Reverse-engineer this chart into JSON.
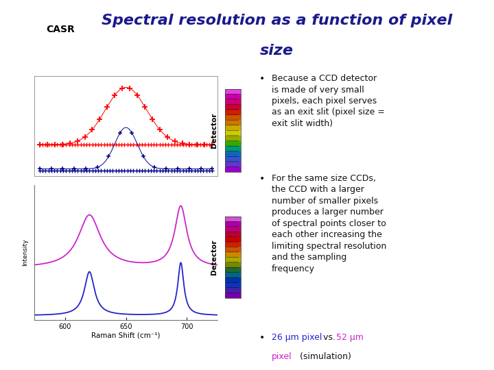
{
  "title_line1": "Spectral resolution as a function of pixel",
  "title_line2": "size",
  "title_bg": "#6080b8",
  "title_text_color": "#1a1a8c",
  "slide_bg": "#ffffff",
  "blue_color": "#2222cc",
  "magenta_color": "#cc22cc",
  "text_color": "#111111",
  "bullet1": "Because a CCD detector\nis made of very small\npixels, each pixel serves\nas an exit slit (pixel size =\nexit slit width)",
  "bullet2": "For the same size CCDs,\nthe CCD with a larger\nnumber of smaller pixels\nproduces a larger number\nof spectral points closer to\neach other increasing the\nlimiting spectral resolution\nand the sampling\nfrequency",
  "bullet3_blue": "26 μm pixel",
  "bullet3_vs": " vs. ",
  "bullet3_magenta": "52 μm\npixel",
  "bullet3_rest": " (simulation)",
  "detector_label": "Detector",
  "raman_xlabel": "Raman Shift (cm⁻¹)",
  "det_colors_top": [
    "#9900cc",
    "#6633cc",
    "#3355cc",
    "#1166bb",
    "#009977",
    "#33aa00",
    "#99aa00",
    "#cccc00",
    "#ccaa00",
    "#cc7700",
    "#cc5500",
    "#cc2200",
    "#cc0033",
    "#cc0077",
    "#cc00aa",
    "#dd44dd"
  ],
  "det_colors_bot": [
    "#7700aa",
    "#4422aa",
    "#1133bb",
    "#0033aa",
    "#006688",
    "#226633",
    "#778800",
    "#aaaa00",
    "#cc8800",
    "#cc5500",
    "#cc2200",
    "#cc0000",
    "#bb0033",
    "#bb0077",
    "#aa00aa",
    "#cc55cc"
  ]
}
